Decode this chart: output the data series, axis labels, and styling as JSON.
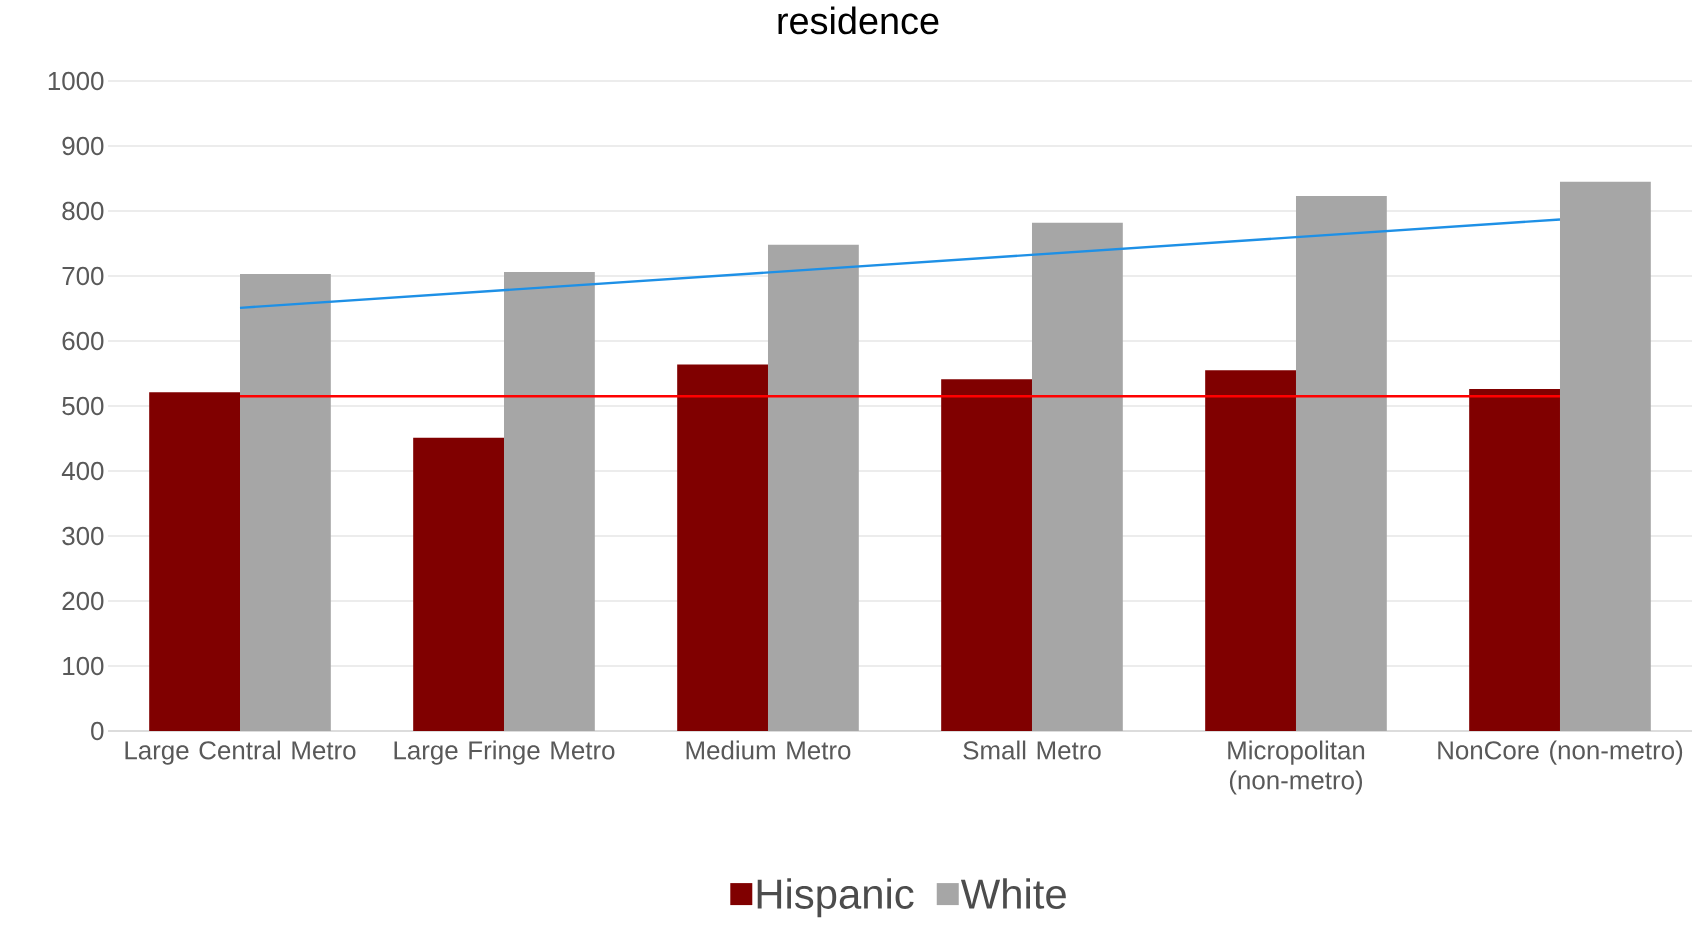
{
  "chart_data": {
    "type": "bar",
    "title": "residence",
    "categories": [
      "Large Central Metro",
      "Large Fringe Metro",
      "Medium Metro",
      "Small Metro",
      "Micropolitan (non-metro)",
      "NonCore (non-metro)"
    ],
    "series": [
      {
        "name": "Hispanic",
        "color": "#800000",
        "values": [
          521,
          451,
          564,
          541,
          555,
          526
        ]
      },
      {
        "name": "White",
        "color": "#a6a6a6",
        "values": [
          703,
          706,
          748,
          782,
          823,
          845
        ]
      },
      {
        "type": "line",
        "color": "#ff0000",
        "x": [
          "Large Central Metro",
          "NonCore (non-metro)"
        ],
        "values": [
          515,
          515
        ]
      },
      {
        "type": "line",
        "color": "#1e90e6",
        "x": [
          "Large Central Metro",
          "NonCore (non-metro)"
        ],
        "values": [
          651,
          787
        ]
      }
    ],
    "ylim": [
      0,
      1000
    ],
    "yticks": [
      0,
      100,
      200,
      300,
      400,
      500,
      600,
      700,
      800,
      900,
      1000
    ],
    "grid": "y",
    "legend": "bottom"
  }
}
